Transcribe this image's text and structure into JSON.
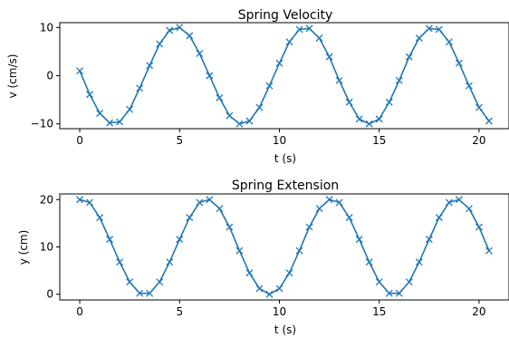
{
  "colors": {
    "series": "#1f77b4",
    "axes": "#000000",
    "background": "#ffffff"
  },
  "chart_data": [
    {
      "type": "line",
      "title": "Spring Velocity",
      "xlabel": "t (s)",
      "ylabel": "v (cm/s)",
      "xlim": [
        -1.0,
        21.5
      ],
      "ylim": [
        -11.0,
        11.0
      ],
      "xticks": [
        0,
        5,
        10,
        15,
        20
      ],
      "yticks": [
        -10,
        0,
        10
      ],
      "ytick_labels": [
        "−10",
        "0",
        "10"
      ],
      "marker": "x",
      "grid": false,
      "series": [
        {
          "x": [
            0.0,
            0.5,
            1.0,
            1.5,
            2.0,
            2.5,
            3.0,
            3.5,
            4.0,
            4.5,
            5.0,
            5.5,
            6.0,
            6.5,
            7.0,
            7.5,
            8.0,
            8.5,
            9.0,
            9.5,
            10.0,
            10.5,
            11.0,
            11.5,
            12.0,
            12.5,
            13.0,
            13.5,
            14.0,
            14.5,
            15.0,
            15.5,
            16.0,
            16.5,
            17.0,
            17.5,
            18.0,
            18.5,
            19.0,
            19.5,
            20.0,
            20.5
          ],
          "values": [
            1.0,
            -3.9,
            -7.8,
            -9.8,
            -9.6,
            -7.0,
            -2.6,
            2.1,
            6.6,
            9.4,
            10.0,
            8.3,
            4.6,
            0.0,
            -4.6,
            -8.3,
            -10.0,
            -9.4,
            -6.6,
            -2.1,
            2.6,
            7.0,
            9.6,
            9.8,
            7.8,
            3.9,
            -1.0,
            -5.5,
            -9.0,
            -10.0,
            -9.0,
            -5.5,
            -1.0,
            3.9,
            7.8,
            9.8,
            9.6,
            7.0,
            2.6,
            -2.1,
            -6.6,
            -9.4
          ]
        }
      ]
    },
    {
      "type": "line",
      "title": "Spring Extension",
      "xlabel": "t (s)",
      "ylabel": "y (cm)",
      "xlim": [
        -1.0,
        21.5
      ],
      "ylim": [
        -1.2,
        21.2
      ],
      "xticks": [
        0,
        5,
        10,
        15,
        20
      ],
      "yticks": [
        0,
        10,
        20
      ],
      "ytick_labels": [
        "0",
        "10",
        "20"
      ],
      "marker": "x",
      "grid": false,
      "series": [
        {
          "x": [
            0.0,
            0.5,
            1.0,
            1.5,
            2.0,
            2.5,
            3.0,
            3.5,
            4.0,
            4.5,
            5.0,
            5.5,
            6.0,
            6.5,
            7.0,
            7.5,
            8.0,
            8.5,
            9.0,
            9.5,
            10.0,
            10.5,
            11.0,
            11.5,
            12.0,
            12.5,
            13.0,
            13.5,
            14.0,
            14.5,
            15.0,
            15.5,
            16.0,
            16.5,
            17.0,
            17.5,
            18.0,
            18.5,
            19.0,
            19.5,
            20.0,
            20.5
          ],
          "values": [
            20.0,
            19.4,
            16.2,
            11.6,
            6.8,
            2.6,
            0.2,
            0.2,
            2.6,
            6.8,
            11.6,
            16.2,
            19.4,
            20.0,
            18.1,
            14.2,
            9.2,
            4.5,
            1.2,
            0.0,
            1.2,
            4.5,
            9.2,
            14.2,
            18.1,
            20.0,
            19.4,
            16.2,
            11.6,
            6.8,
            2.6,
            0.2,
            0.2,
            2.6,
            6.8,
            11.6,
            16.2,
            19.4,
            20.0,
            18.1,
            14.2,
            9.2
          ]
        }
      ]
    }
  ]
}
